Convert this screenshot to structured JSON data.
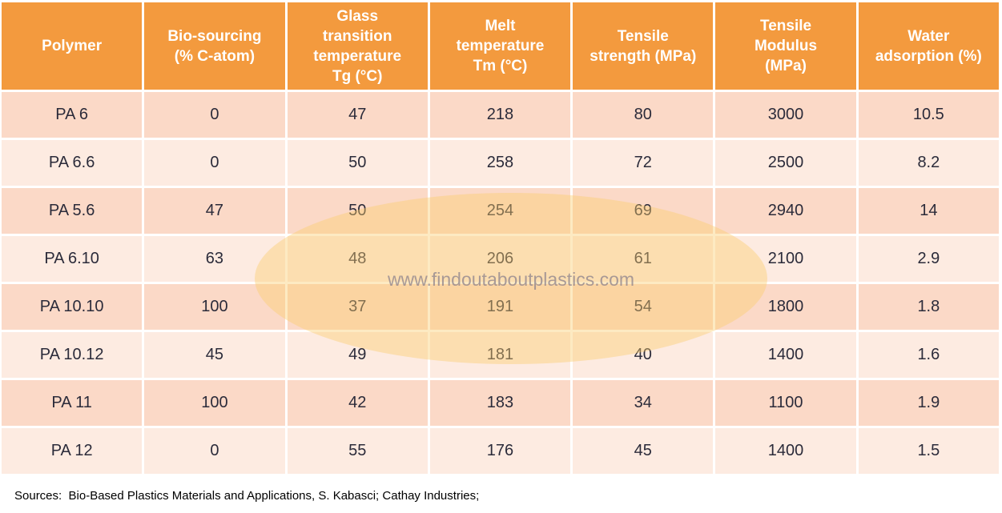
{
  "table": {
    "headers": [
      [
        "Polymer"
      ],
      [
        "Bio-sourcing",
        "(% C-atom)"
      ],
      [
        "Glass",
        "transition",
        "temperature",
        "Tg (°C)"
      ],
      [
        "Melt",
        "temperature",
        "Tm (°C)"
      ],
      [
        "Tensile",
        "strength (MPa)"
      ],
      [
        "Tensile",
        "Modulus",
        "(MPa)"
      ],
      [
        "Water",
        "adsorption (%)"
      ]
    ],
    "rows": [
      [
        "PA 6",
        "0",
        "47",
        "218",
        "80",
        "3000",
        "10.5"
      ],
      [
        "PA 6.6",
        "0",
        "50",
        "258",
        "72",
        "2500",
        "8.2"
      ],
      [
        "PA 5.6",
        "47",
        "50",
        "254",
        "69",
        "2940",
        "14"
      ],
      [
        "PA 6.10",
        "63",
        "48",
        "206",
        "61",
        "2100",
        "2.9"
      ],
      [
        "PA 10.10",
        "100",
        "37",
        "191",
        "54",
        "1800",
        "1.8"
      ],
      [
        "PA 10.12",
        "45",
        "49",
        "181",
        "40",
        "1400",
        "1.6"
      ],
      [
        "PA 11",
        "100",
        "42",
        "183",
        "34",
        "1100",
        "1.9"
      ],
      [
        "PA 12",
        "0",
        "55",
        "176",
        "45",
        "1400",
        "1.5"
      ]
    ]
  },
  "watermark": "www.findoutaboutplastics.com",
  "sources": "Sources:  Bio-Based Plastics Materials and Applications, S. Kabasci; Cathay Industries;",
  "colors": {
    "header_bg": "#f39a3e",
    "row_odd_bg": "#fbd9c7",
    "row_even_bg": "#fdebe1"
  }
}
